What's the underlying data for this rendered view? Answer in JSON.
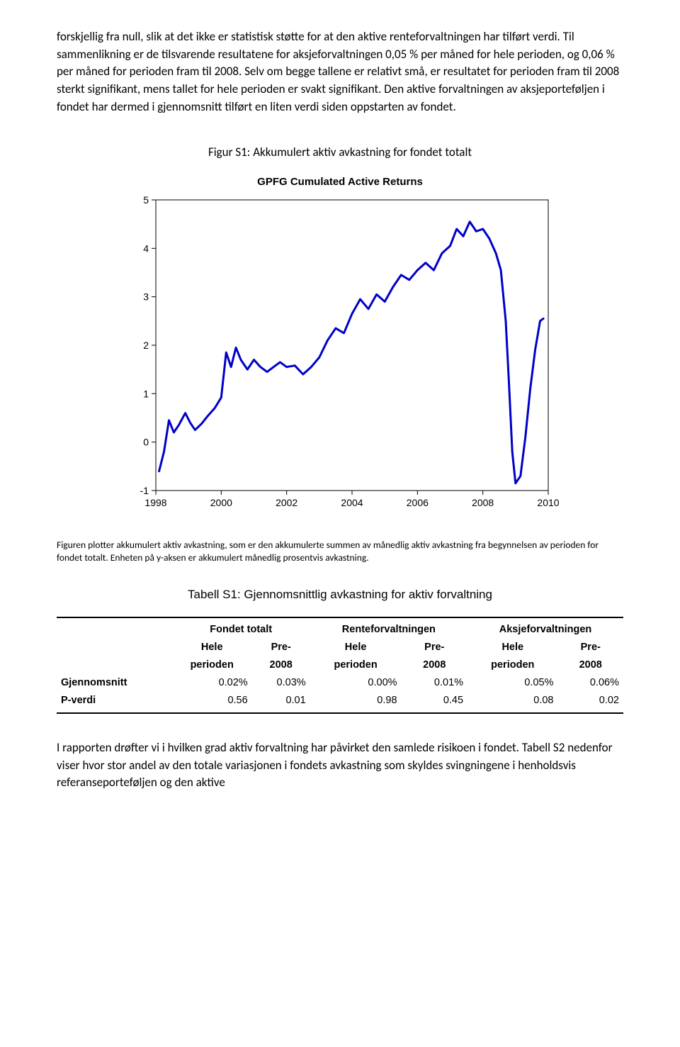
{
  "paragraph1": "forskjellig fra null, slik at det ikke er statistisk støtte for at den aktive renteforvaltningen har tilført verdi. Til sammenlikning er de tilsvarende resultatene for aksjeforvaltningen 0,05 % per måned for hele perioden, og 0,06 % per måned for perioden fram til 2008. Selv om begge tallene er relativt små, er resultatet for perioden fram til 2008 sterkt signifikant, mens tallet for hele perioden er svakt signifikant. Den aktive forvaltningen av aksjeporteføljen i fondet har dermed i gjennomsnitt tilført en liten verdi siden oppstarten av fondet.",
  "figure_title": "Figur S1: Akkumulert aktiv avkastning for fondet totalt",
  "chart": {
    "title": "GPFG Cumulated Active Returns",
    "title_fontsize": 15,
    "line_color": "#0000c8",
    "line_width": 3,
    "background_color": "#ffffff",
    "axis_color": "#000000",
    "xlim": [
      1998,
      2010
    ],
    "ylim": [
      -1,
      5
    ],
    "xtick_step": 2,
    "ytick_step": 1,
    "xticks": [
      1998,
      2000,
      2002,
      2004,
      2006,
      2008,
      2010
    ],
    "yticks": [
      -1,
      0,
      1,
      2,
      3,
      4,
      5
    ],
    "label_fontsize": 14,
    "series": [
      {
        "x": 1998.1,
        "y": -0.6
      },
      {
        "x": 1998.25,
        "y": -0.2
      },
      {
        "x": 1998.4,
        "y": 0.45
      },
      {
        "x": 1998.55,
        "y": 0.2
      },
      {
        "x": 1998.7,
        "y": 0.35
      },
      {
        "x": 1998.9,
        "y": 0.6
      },
      {
        "x": 1999.05,
        "y": 0.4
      },
      {
        "x": 1999.2,
        "y": 0.25
      },
      {
        "x": 1999.4,
        "y": 0.38
      },
      {
        "x": 1999.6,
        "y": 0.55
      },
      {
        "x": 1999.8,
        "y": 0.7
      },
      {
        "x": 2000.0,
        "y": 0.92
      },
      {
        "x": 2000.15,
        "y": 1.85
      },
      {
        "x": 2000.3,
        "y": 1.55
      },
      {
        "x": 2000.45,
        "y": 1.95
      },
      {
        "x": 2000.6,
        "y": 1.7
      },
      {
        "x": 2000.8,
        "y": 1.5
      },
      {
        "x": 2001.0,
        "y": 1.7
      },
      {
        "x": 2001.2,
        "y": 1.55
      },
      {
        "x": 2001.4,
        "y": 1.45
      },
      {
        "x": 2001.6,
        "y": 1.55
      },
      {
        "x": 2001.8,
        "y": 1.65
      },
      {
        "x": 2002.0,
        "y": 1.55
      },
      {
        "x": 2002.25,
        "y": 1.58
      },
      {
        "x": 2002.5,
        "y": 1.4
      },
      {
        "x": 2002.75,
        "y": 1.55
      },
      {
        "x": 2003.0,
        "y": 1.75
      },
      {
        "x": 2003.25,
        "y": 2.1
      },
      {
        "x": 2003.5,
        "y": 2.35
      },
      {
        "x": 2003.75,
        "y": 2.25
      },
      {
        "x": 2004.0,
        "y": 2.65
      },
      {
        "x": 2004.25,
        "y": 2.95
      },
      {
        "x": 2004.5,
        "y": 2.75
      },
      {
        "x": 2004.75,
        "y": 3.05
      },
      {
        "x": 2005.0,
        "y": 2.9
      },
      {
        "x": 2005.25,
        "y": 3.2
      },
      {
        "x": 2005.5,
        "y": 3.45
      },
      {
        "x": 2005.75,
        "y": 3.35
      },
      {
        "x": 2006.0,
        "y": 3.55
      },
      {
        "x": 2006.25,
        "y": 3.7
      },
      {
        "x": 2006.5,
        "y": 3.55
      },
      {
        "x": 2006.75,
        "y": 3.9
      },
      {
        "x": 2007.0,
        "y": 4.05
      },
      {
        "x": 2007.2,
        "y": 4.4
      },
      {
        "x": 2007.4,
        "y": 4.25
      },
      {
        "x": 2007.6,
        "y": 4.55
      },
      {
        "x": 2007.8,
        "y": 4.35
      },
      {
        "x": 2008.0,
        "y": 4.4
      },
      {
        "x": 2008.2,
        "y": 4.2
      },
      {
        "x": 2008.4,
        "y": 3.9
      },
      {
        "x": 2008.55,
        "y": 3.55
      },
      {
        "x": 2008.7,
        "y": 2.5
      },
      {
        "x": 2008.8,
        "y": 1.2
      },
      {
        "x": 2008.9,
        "y": -0.2
      },
      {
        "x": 2009.0,
        "y": -0.85
      },
      {
        "x": 2009.15,
        "y": -0.7
      },
      {
        "x": 2009.3,
        "y": 0.1
      },
      {
        "x": 2009.45,
        "y": 1.1
      },
      {
        "x": 2009.6,
        "y": 1.9
      },
      {
        "x": 2009.75,
        "y": 2.5
      },
      {
        "x": 2009.85,
        "y": 2.55
      }
    ]
  },
  "caption": "Figuren plotter akkumulert aktiv avkastning, som er den akkumulerte summen av månedlig aktiv avkastning fra begynnelsen av perioden for fondet totalt. Enheten på y-aksen er akkumulert månedlig prosentvis avkastning.",
  "table_title": "Tabell S1: Gjennomsnittlig avkastning for aktiv forvaltning",
  "table": {
    "groups": [
      "Fondet totalt",
      "Renteforvaltningen",
      "Aksjeforvaltningen"
    ],
    "subcols": [
      {
        "a": "Hele",
        "b": "Pre-"
      },
      {
        "a": "perioden",
        "b": "2008"
      }
    ],
    "rows": [
      {
        "label": "Gjennomsnitt",
        "vals": [
          "0.02%",
          "0.03%",
          "0.00%",
          "0.01%",
          "0.05%",
          "0.06%"
        ]
      },
      {
        "label": "P-verdi",
        "vals": [
          "0.56",
          "0.01",
          "0.98",
          "0.45",
          "0.08",
          "0.02"
        ]
      }
    ]
  },
  "paragraph2": "I rapporten drøfter vi i hvilken grad aktiv forvaltning har påvirket den samlede risikoen i fondet. Tabell S2 nedenfor viser hvor stor andel av den totale variasjonen i fondets avkastning som skyldes svingningene i henholdsvis referanseporteføljen og den aktive"
}
